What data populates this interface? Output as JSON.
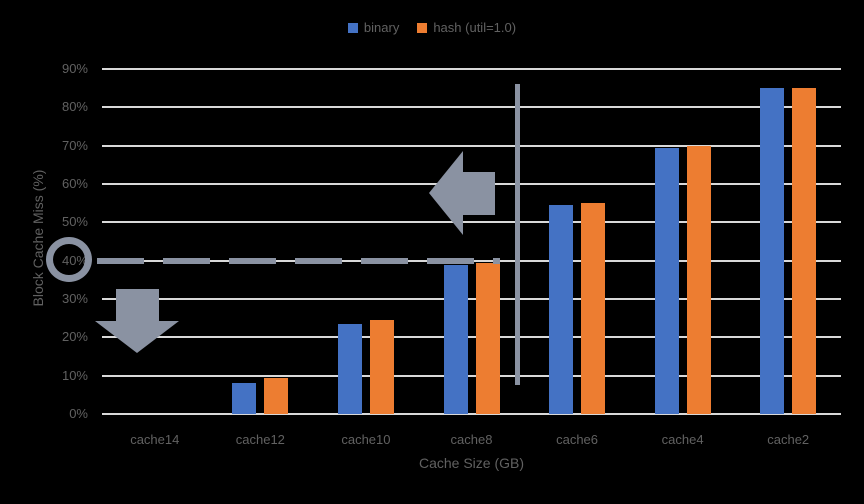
{
  "chart_data": {
    "type": "bar",
    "categories": [
      "cache14",
      "cache12",
      "cache10",
      "cache8",
      "cache6",
      "cache4",
      "cache2"
    ],
    "series": [
      {
        "name": "binary",
        "color": "#4472C4",
        "values": [
          0,
          8,
          23.5,
          39,
          54.5,
          69.5,
          85
        ]
      },
      {
        "name": "hash (util=1.0)",
        "color": "#ED7D31",
        "values": [
          0,
          9.5,
          24.5,
          39.5,
          55,
          70,
          85
        ]
      }
    ],
    "title": "",
    "xlabel": "Cache Size (GB)",
    "ylabel": "Block Cache Miss (%)",
    "ylim": [
      0,
      90
    ],
    "ytick_step": 10,
    "ytick_labels": [
      "0%",
      "10%",
      "20%",
      "30%",
      "40%",
      "50%",
      "60%",
      "70%",
      "80%",
      "90%"
    ],
    "grid": true,
    "legend_position": "top-center"
  },
  "annotations": {
    "dashed_threshold_line": {
      "y_value": 40,
      "color": "#8A92A2"
    },
    "circle_highlight": {
      "around_tick_label": "40%",
      "color": "#8A92A2"
    },
    "down_arrow": {
      "direction": "down",
      "color": "#8A92A2"
    },
    "left_arrow": {
      "direction": "left",
      "color": "#8A92A2"
    },
    "vertical_line": {
      "color": "#8A92A2"
    }
  },
  "colors": {
    "background": "#000000",
    "gridline": "#D9D9D9",
    "axis_text": "#616161",
    "annotation": "#8A92A2"
  }
}
